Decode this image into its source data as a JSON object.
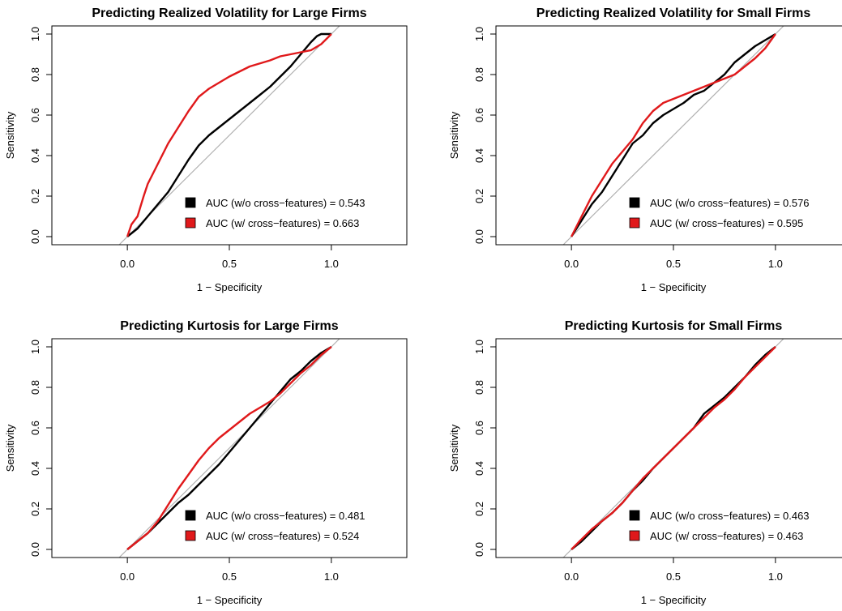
{
  "chart_data": [
    {
      "type": "line",
      "title": "Predicting Realized Volatility for Large Firms",
      "xlabel": "1 − Specificity",
      "ylabel": "Sensitivity",
      "xlim": [
        0,
        1
      ],
      "ylim": [
        0,
        1
      ],
      "xticks": [
        "0.0",
        "0.5",
        "1.0"
      ],
      "yticks": [
        "0.0",
        "0.2",
        "0.4",
        "0.6",
        "0.8",
        "1.0"
      ],
      "grid": false,
      "legend_position": "bottom-right",
      "reference_line": {
        "from": [
          0,
          0
        ],
        "to": [
          1,
          1
        ],
        "color": "#b0b0b0"
      },
      "series": [
        {
          "name": "AUC (w/o cross−features) = 0.543",
          "color": "#000000",
          "x": [
            0,
            0.05,
            0.1,
            0.15,
            0.2,
            0.25,
            0.3,
            0.35,
            0.4,
            0.45,
            0.5,
            0.55,
            0.6,
            0.65,
            0.7,
            0.75,
            0.8,
            0.85,
            0.9,
            0.93,
            0.95,
            0.98,
            1.0
          ],
          "y": [
            0,
            0.04,
            0.1,
            0.16,
            0.22,
            0.3,
            0.38,
            0.45,
            0.5,
            0.54,
            0.58,
            0.62,
            0.66,
            0.7,
            0.74,
            0.79,
            0.84,
            0.9,
            0.96,
            0.99,
            1.0,
            1.0,
            1.0
          ]
        },
        {
          "name": "AUC (w/ cross−features) = 0.663",
          "color": "#e0191b",
          "x": [
            0,
            0.02,
            0.05,
            0.08,
            0.1,
            0.15,
            0.2,
            0.25,
            0.3,
            0.35,
            0.4,
            0.5,
            0.6,
            0.7,
            0.75,
            0.8,
            0.9,
            0.95,
            1.0
          ],
          "y": [
            0,
            0.06,
            0.1,
            0.2,
            0.26,
            0.36,
            0.46,
            0.54,
            0.62,
            0.69,
            0.73,
            0.79,
            0.84,
            0.87,
            0.89,
            0.9,
            0.92,
            0.95,
            1.0
          ]
        }
      ]
    },
    {
      "type": "line",
      "title": "Predicting Realized Volatility for Small Firms",
      "xlabel": "1 − Specificity",
      "ylabel": "Sensitivity",
      "xlim": [
        0,
        1
      ],
      "ylim": [
        0,
        1
      ],
      "xticks": [
        "0.0",
        "0.5",
        "1.0"
      ],
      "yticks": [
        "0.0",
        "0.2",
        "0.4",
        "0.6",
        "0.8",
        "1.0"
      ],
      "grid": false,
      "legend_position": "bottom-right",
      "reference_line": {
        "from": [
          0,
          0
        ],
        "to": [
          1,
          1
        ],
        "color": "#b0b0b0"
      },
      "series": [
        {
          "name": "AUC (w/o cross−features) = 0.576",
          "color": "#000000",
          "x": [
            0,
            0.05,
            0.1,
            0.15,
            0.2,
            0.25,
            0.3,
            0.35,
            0.4,
            0.45,
            0.5,
            0.55,
            0.6,
            0.65,
            0.7,
            0.75,
            0.8,
            0.85,
            0.9,
            0.95,
            1.0
          ],
          "y": [
            0,
            0.08,
            0.16,
            0.22,
            0.3,
            0.38,
            0.46,
            0.5,
            0.56,
            0.6,
            0.63,
            0.66,
            0.7,
            0.72,
            0.76,
            0.8,
            0.86,
            0.9,
            0.94,
            0.97,
            1.0
          ]
        },
        {
          "name": "AUC (w/ cross−features) = 0.595",
          "color": "#e0191b",
          "x": [
            0,
            0.05,
            0.1,
            0.15,
            0.2,
            0.25,
            0.3,
            0.35,
            0.4,
            0.45,
            0.5,
            0.55,
            0.6,
            0.65,
            0.7,
            0.75,
            0.8,
            0.85,
            0.9,
            0.95,
            1.0
          ],
          "y": [
            0,
            0.1,
            0.2,
            0.28,
            0.36,
            0.42,
            0.48,
            0.56,
            0.62,
            0.66,
            0.68,
            0.7,
            0.72,
            0.74,
            0.76,
            0.78,
            0.8,
            0.84,
            0.88,
            0.93,
            1.0
          ]
        }
      ]
    },
    {
      "type": "line",
      "title": "Predicting Kurtosis for Large Firms",
      "xlabel": "1 − Specificity",
      "ylabel": "Sensitivity",
      "xlim": [
        0,
        1
      ],
      "ylim": [
        0,
        1
      ],
      "xticks": [
        "0.0",
        "0.5",
        "1.0"
      ],
      "yticks": [
        "0.0",
        "0.2",
        "0.4",
        "0.6",
        "0.8",
        "1.0"
      ],
      "grid": false,
      "legend_position": "bottom-right",
      "reference_line": {
        "from": [
          0,
          0
        ],
        "to": [
          1,
          1
        ],
        "color": "#b0b0b0"
      },
      "series": [
        {
          "name": "AUC (w/o cross−features) = 0.481",
          "color": "#000000",
          "x": [
            0,
            0.05,
            0.1,
            0.15,
            0.2,
            0.25,
            0.3,
            0.35,
            0.4,
            0.45,
            0.5,
            0.55,
            0.6,
            0.65,
            0.7,
            0.75,
            0.8,
            0.85,
            0.9,
            0.95,
            1.0
          ],
          "y": [
            0,
            0.04,
            0.08,
            0.13,
            0.18,
            0.23,
            0.27,
            0.32,
            0.37,
            0.42,
            0.48,
            0.54,
            0.6,
            0.66,
            0.72,
            0.78,
            0.84,
            0.88,
            0.93,
            0.97,
            1.0
          ]
        },
        {
          "name": "AUC (w/ cross−features) = 0.524",
          "color": "#e0191b",
          "x": [
            0,
            0.05,
            0.1,
            0.15,
            0.2,
            0.25,
            0.3,
            0.35,
            0.4,
            0.45,
            0.5,
            0.55,
            0.6,
            0.65,
            0.7,
            0.75,
            0.8,
            0.85,
            0.9,
            0.95,
            1.0
          ],
          "y": [
            0,
            0.04,
            0.08,
            0.14,
            0.22,
            0.3,
            0.37,
            0.44,
            0.5,
            0.55,
            0.59,
            0.63,
            0.67,
            0.7,
            0.73,
            0.77,
            0.82,
            0.87,
            0.91,
            0.96,
            1.0
          ]
        }
      ]
    },
    {
      "type": "line",
      "title": "Predicting Kurtosis for Small Firms",
      "xlabel": "1 − Specificity",
      "ylabel": "Sensitivity",
      "xlim": [
        0,
        1
      ],
      "ylim": [
        0,
        1
      ],
      "xticks": [
        "0.0",
        "0.5",
        "1.0"
      ],
      "yticks": [
        "0.0",
        "0.2",
        "0.4",
        "0.6",
        "0.8",
        "1.0"
      ],
      "grid": false,
      "legend_position": "bottom-right",
      "reference_line": {
        "from": [
          0,
          0
        ],
        "to": [
          1,
          1
        ],
        "color": "#b0b0b0"
      },
      "series": [
        {
          "name": "AUC (w/o cross−features) = 0.463",
          "color": "#000000",
          "x": [
            0,
            0.05,
            0.1,
            0.15,
            0.2,
            0.25,
            0.3,
            0.35,
            0.4,
            0.45,
            0.5,
            0.55,
            0.6,
            0.65,
            0.7,
            0.75,
            0.8,
            0.85,
            0.9,
            0.95,
            1.0
          ],
          "y": [
            0,
            0.04,
            0.09,
            0.14,
            0.18,
            0.23,
            0.29,
            0.34,
            0.4,
            0.45,
            0.5,
            0.55,
            0.6,
            0.67,
            0.71,
            0.75,
            0.8,
            0.85,
            0.91,
            0.96,
            1.0
          ]
        },
        {
          "name": "AUC (w/ cross−features) = 0.463",
          "color": "#e0191b",
          "x": [
            0,
            0.05,
            0.1,
            0.15,
            0.2,
            0.25,
            0.3,
            0.35,
            0.4,
            0.45,
            0.5,
            0.55,
            0.6,
            0.65,
            0.7,
            0.75,
            0.8,
            0.85,
            0.9,
            0.95,
            1.0
          ],
          "y": [
            0,
            0.05,
            0.1,
            0.14,
            0.18,
            0.23,
            0.29,
            0.35,
            0.4,
            0.45,
            0.5,
            0.55,
            0.6,
            0.65,
            0.7,
            0.74,
            0.79,
            0.85,
            0.9,
            0.95,
            1.0
          ]
        }
      ]
    }
  ]
}
